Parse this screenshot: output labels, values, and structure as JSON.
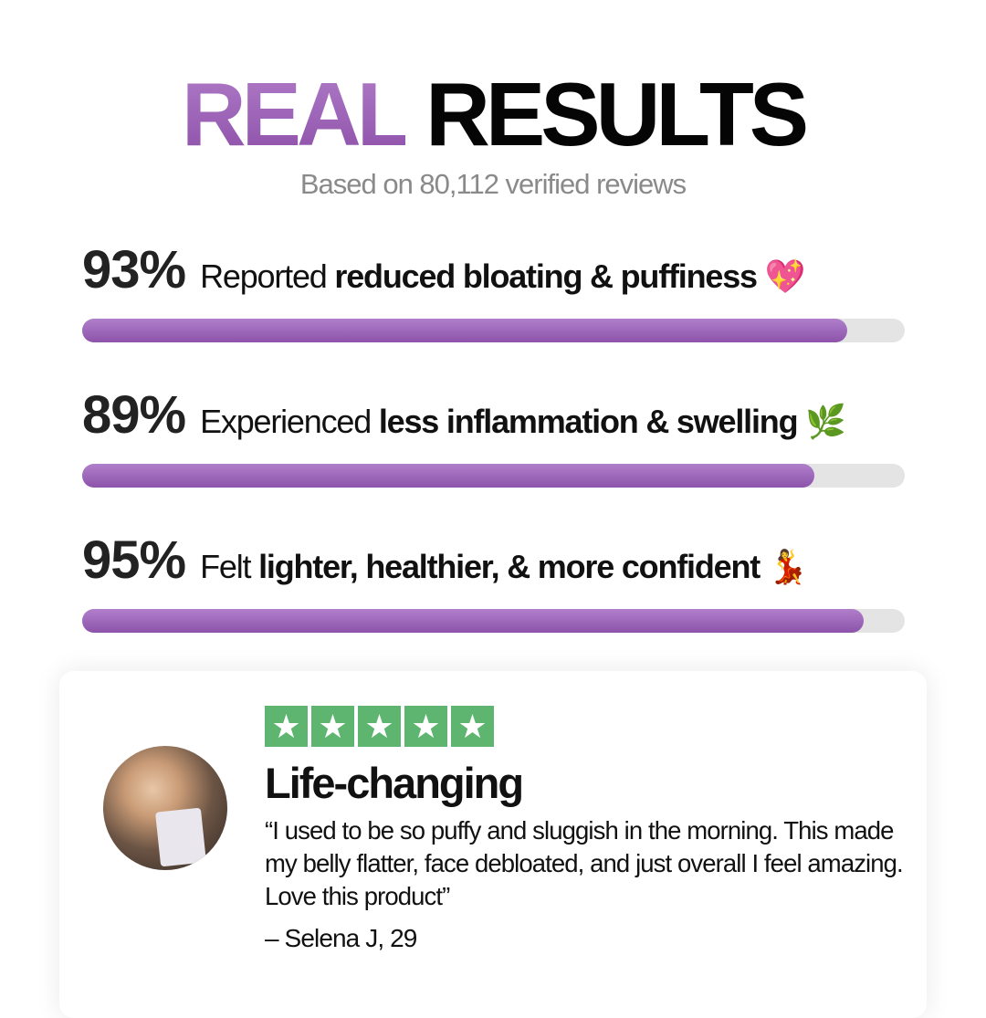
{
  "header": {
    "title_accent": "REAL",
    "title_main": "RESULTS",
    "subtitle": "Based on 80,112 verified reviews",
    "accent_color": "#9a61b6"
  },
  "stats": [
    {
      "percent_label": "93%",
      "value": 93,
      "prefix": "Reported",
      "bold": "reduced bloating & puffiness",
      "emoji": "💖",
      "icon": "sparkling-heart-icon"
    },
    {
      "percent_label": "89%",
      "value": 89,
      "prefix": "Experienced",
      "bold": "less inflammation & swelling",
      "emoji": "🌿",
      "icon": "herb-icon"
    },
    {
      "percent_label": "95%",
      "value": 95,
      "prefix": "Felt",
      "bold": "lighter, healthier, & more confident",
      "emoji": "💃",
      "icon": "dancer-icon"
    }
  ],
  "review": {
    "rating": 5,
    "star_color": "#5db56f",
    "title": "Life-changing",
    "quote": "“I used to be so puffy and sluggish in the morning. This made my belly flatter, face debloated, and just overall I feel amazing. Love this product”",
    "author": "– Selena J, 29"
  }
}
